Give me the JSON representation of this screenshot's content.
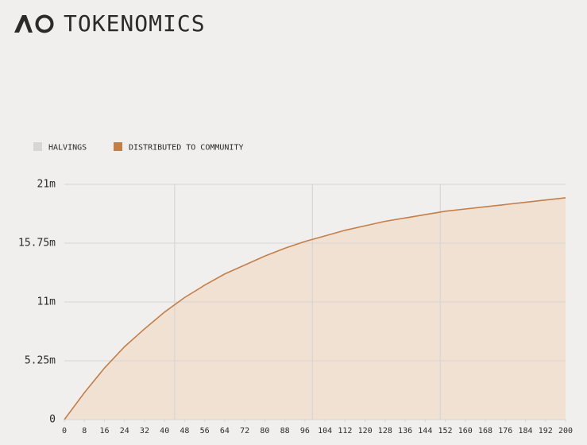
{
  "chart_data": {
    "type": "area",
    "title": "TOKENOMICS",
    "x": [
      0,
      8,
      16,
      24,
      32,
      40,
      48,
      56,
      64,
      72,
      80,
      88,
      96,
      104,
      112,
      120,
      128,
      136,
      144,
      152,
      160,
      168,
      176,
      184,
      192,
      200
    ],
    "xlim": [
      0,
      200
    ],
    "xticks": [
      0,
      8,
      16,
      24,
      32,
      40,
      48,
      56,
      64,
      72,
      80,
      88,
      96,
      104,
      112,
      120,
      128,
      136,
      144,
      152,
      160,
      168,
      176,
      184,
      192,
      200
    ],
    "ylim": [
      0,
      21
    ],
    "yticks": [
      0,
      {
        "value": 5.25,
        "label": "5.25m"
      },
      {
        "value": 10.5,
        "label": "11m"
      },
      {
        "value": 15.75,
        "label": "15.75m"
      },
      {
        "value": 21,
        "label": "21m"
      }
    ],
    "grid": true,
    "series": [
      {
        "name": "HALVINGS",
        "color": "#d6d6d6",
        "x": [
          44,
          99,
          150
        ]
      },
      {
        "name": "DISTRIBUTED TO COMMUNITY",
        "color": "#c27f4a",
        "fill": "#f1e1d2",
        "values": [
          0,
          2.4,
          4.6,
          6.5,
          8.1,
          9.6,
          10.9,
          12.0,
          13.0,
          13.8,
          14.6,
          15.3,
          15.9,
          16.4,
          16.9,
          17.3,
          17.7,
          18.0,
          18.3,
          18.6,
          18.8,
          19.0,
          19.2,
          19.4,
          19.6,
          19.8
        ]
      }
    ]
  }
}
